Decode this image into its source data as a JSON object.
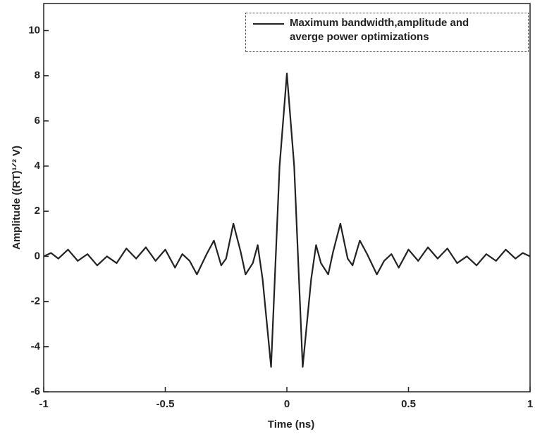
{
  "chart_data": {
    "type": "line",
    "x_label": "Time (ns)",
    "y_label": "Amplitude ((RT)¹ᐟ² V)",
    "xlim": [
      -1,
      1
    ],
    "xticks": [
      -1,
      -0.5,
      0,
      0.5,
      1
    ],
    "ylim": [
      -6,
      11.2
    ],
    "yticks": [
      -6,
      -4,
      -2,
      0,
      2,
      4,
      6,
      8,
      10
    ],
    "x": [
      -1.0,
      -0.97,
      -0.94,
      -0.9,
      -0.86,
      -0.82,
      -0.78,
      -0.74,
      -0.7,
      -0.66,
      -0.62,
      -0.58,
      -0.54,
      -0.5,
      -0.46,
      -0.43,
      -0.4,
      -0.37,
      -0.33,
      -0.3,
      -0.27,
      -0.25,
      -0.22,
      -0.19,
      -0.17,
      -0.14,
      -0.12,
      -0.1,
      -0.065,
      -0.03,
      0,
      0.03,
      0.065,
      0.1,
      0.12,
      0.14,
      0.17,
      0.19,
      0.22,
      0.25,
      0.27,
      0.3,
      0.33,
      0.37,
      0.4,
      0.43,
      0.46,
      0.5,
      0.54,
      0.58,
      0.62,
      0.66,
      0.7,
      0.74,
      0.78,
      0.82,
      0.86,
      0.9,
      0.94,
      0.97,
      1.0
    ],
    "series": [
      {
        "name": "Maximum bandwidth,amplitude and averge power optimizations",
        "color": "#222222",
        "values": [
          0.0,
          0.15,
          -0.1,
          0.3,
          -0.2,
          0.1,
          -0.4,
          0.0,
          -0.3,
          0.35,
          -0.1,
          0.4,
          -0.2,
          0.3,
          -0.5,
          0.1,
          -0.2,
          -0.8,
          0.1,
          0.7,
          -0.4,
          -0.1,
          1.45,
          0.2,
          -0.8,
          -0.3,
          0.5,
          -1.0,
          -4.9,
          4.0,
          8.1,
          4.0,
          -4.9,
          -1.0,
          0.5,
          -0.3,
          -0.8,
          0.2,
          1.45,
          -0.1,
          -0.4,
          0.7,
          0.1,
          -0.8,
          -0.2,
          0.1,
          -0.5,
          0.3,
          -0.2,
          0.4,
          -0.1,
          0.35,
          -0.3,
          0.0,
          -0.4,
          0.1,
          -0.2,
          0.3,
          -0.1,
          0.15,
          0.0
        ]
      }
    ]
  }
}
